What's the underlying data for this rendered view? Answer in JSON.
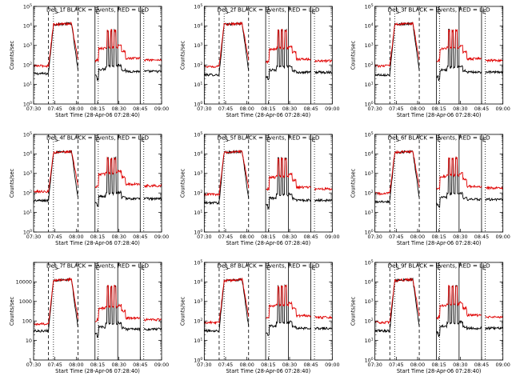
{
  "chart_data": {
    "type": "line",
    "shared": {
      "xlabel": "Start Time (28-Apr-06 07:28:40)",
      "ylabel": "Counts/sec",
      "x_tick_labels": [
        "07:30",
        "07:45",
        "08:00",
        "08:15",
        "08:30",
        "08:45",
        "09:00"
      ],
      "x_ticks_minutes_after_0728_40": [
        1.33,
        16.33,
        31.33,
        46.33,
        61.33,
        76.33,
        91.33
      ],
      "xlim_minutes": [
        1.33,
        91.33
      ],
      "y_scale": "log",
      "ylim": [
        1,
        100000
      ],
      "y_tick_labels_exponential": [
        "10^0",
        "10^1",
        "10^2",
        "10^3",
        "10^4",
        "10^5"
      ],
      "vline_labels": [
        {
          "text": "S",
          "x": 15.3
        },
        {
          "text": "E",
          "x": 44.5
        },
        {
          "text": "E",
          "x": 76.3
        }
      ],
      "vlines": {
        "dashed": [
          11.8,
          32.5
        ],
        "dotted": [
          15.3,
          46.8,
          78.8
        ],
        "solid": [
          44.5,
          60.5,
          76.3
        ]
      },
      "colors": {
        "events": "#000000",
        "lld": "#e00000"
      }
    },
    "panels": [
      {
        "title": "Det_1f BLACK = Events, RED = LLD",
        "events_level": 55,
        "lld_level": 200,
        "events_pre": 40,
        "lld_pre": 90
      },
      {
        "title": "Det_2f BLACK = Events, RED = LLD",
        "events_level": 50,
        "lld_level": 180,
        "events_pre": 35,
        "lld_pre": 85
      },
      {
        "title": "Det_3f BLACK = Events, RED = LLD",
        "events_level": 50,
        "lld_level": 190,
        "events_pre": 35,
        "lld_pre": 90
      },
      {
        "title": "Det_4f BLACK = Events, RED = LLD",
        "events_level": 60,
        "lld_level": 260,
        "events_pre": 45,
        "lld_pre": 120
      },
      {
        "title": "Det_5f BLACK = Events, RED = LLD",
        "events_level": 50,
        "lld_level": 180,
        "events_pre": 35,
        "lld_pre": 85
      },
      {
        "title": "Det_6f BLACK = Events, RED = LLD",
        "events_level": 55,
        "lld_level": 200,
        "events_pre": 40,
        "lld_pre": 95
      },
      {
        "title": "Det_7f BLACK = Events, RED = LLD",
        "events_level": 45,
        "lld_level": 130,
        "events_pre": 35,
        "lld_pre": 70,
        "y_tick_labels_plain": [
          "1",
          "10",
          "100",
          "1000",
          "10000"
        ]
      },
      {
        "title": "Det_8f BLACK = Events, RED = LLD",
        "events_level": 50,
        "lld_level": 170,
        "events_pre": 35,
        "lld_pre": 85
      },
      {
        "title": "Det_9f BLACK = Events, RED = LLD",
        "events_level": 50,
        "lld_level": 180,
        "events_pre": 35,
        "lld_pre": 85
      }
    ]
  }
}
